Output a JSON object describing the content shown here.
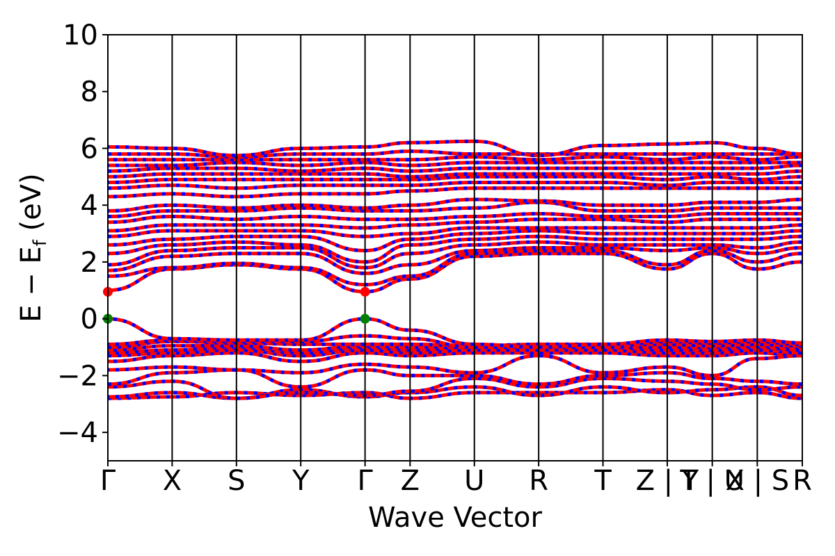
{
  "chart_data": {
    "type": "line",
    "title": "",
    "xlabel": "Wave Vector",
    "ylabel": "E − E",
    "ylabel_subscript": "f",
    "ylabel_unit": "(eV)",
    "ylim": [
      -5,
      10
    ],
    "yticks": [
      -4,
      -2,
      0,
      2,
      4,
      6,
      8,
      10
    ],
    "ytick_labels": [
      "−4",
      "−2",
      "0",
      "2",
      "4",
      "6",
      "8",
      "10"
    ],
    "kpath": [
      {
        "label": "Γ",
        "x": 0.0
      },
      {
        "label": "X",
        "x": 1.0
      },
      {
        "label": "S",
        "x": 2.0
      },
      {
        "label": "Y",
        "x": 3.0
      },
      {
        "label": "Γ",
        "x": 4.0
      },
      {
        "label": "Z",
        "x": 4.7
      },
      {
        "label": "U",
        "x": 5.7
      },
      {
        "label": "R",
        "x": 6.7
      },
      {
        "label": "T",
        "x": 7.7
      },
      {
        "label": "Z | Y",
        "x": 8.7
      },
      {
        "label": "T | U",
        "x": 9.4
      },
      {
        "label": "X | S",
        "x": 10.1
      },
      {
        "label": "R",
        "x": 10.8
      }
    ],
    "grid": false,
    "legend": "none",
    "colors": {
      "spin_up": "#ff0000",
      "spin_down": "#0000ff",
      "extrema": "#008000",
      "cbm": "#ff0000",
      "kpath_line": "#000000"
    },
    "band_edges": [
      {
        "name": "VBM",
        "k": [
          0.0,
          4.0
        ],
        "energy": 0.0,
        "color": "#008000"
      },
      {
        "name": "CBM",
        "k": [
          0.0,
          4.0
        ],
        "energy": 0.95,
        "color": "#ff0000"
      }
    ],
    "series": [
      {
        "values": [
          -2.8,
          -2.75,
          -2.6,
          -2.7,
          -2.6,
          -2.8,
          -2.6,
          -2.6,
          -2.6,
          -2.5,
          -2.7,
          -2.6,
          -2.8
        ]
      },
      {
        "values": [
          -2.75,
          -2.6,
          -2.8,
          -2.5,
          -2.75,
          -2.6,
          -2.4,
          -2.7,
          -2.4,
          -2.6,
          -2.5,
          -2.4,
          -2.7
        ]
      },
      {
        "values": [
          -2.4,
          -2.2,
          -2.8,
          -2.6,
          -2.7,
          -2.55,
          -2.1,
          -2.4,
          -2.1,
          -2.2,
          -2.3,
          -2.5,
          -2.4
        ]
      },
      {
        "values": [
          -2.3,
          -1.9,
          -1.8,
          -2.4,
          -1.8,
          -2.0,
          -2.0,
          -2.3,
          -2.0,
          -1.9,
          -2.1,
          -2.2,
          -2.3
        ]
      },
      {
        "values": [
          -1.8,
          -1.7,
          -1.8,
          -1.9,
          -1.6,
          -1.7,
          -1.9,
          -1.3,
          -1.9,
          -1.7,
          -2.0,
          -1.4,
          -1.3
        ]
      },
      {
        "values": [
          -1.5,
          -1.3,
          -1.2,
          -1.5,
          -1.2,
          -1.3,
          -1.2,
          -1.2,
          -1.2,
          -1.3,
          -1.3,
          -1.2,
          -1.3
        ]
      },
      {
        "values": [
          -1.3,
          -1.2,
          -1.1,
          -1.3,
          -1.1,
          -1.2,
          -1.1,
          -1.1,
          -1.1,
          -1.2,
          -1.2,
          -1.1,
          -1.2
        ]
      },
      {
        "values": [
          -1.2,
          -1.1,
          -1.0,
          -1.2,
          -1.0,
          -1.1,
          -1.0,
          -1.0,
          -1.0,
          -1.1,
          -1.1,
          -1.0,
          -1.1
        ]
      },
      {
        "values": [
          -1.1,
          -0.95,
          -0.95,
          -1.1,
          -0.95,
          -1.0,
          -1.0,
          -0.95,
          -1.0,
          -1.0,
          -1.0,
          -0.95,
          -1.0
        ]
      },
      {
        "values": [
          -1.0,
          -0.8,
          -0.85,
          -0.9,
          -0.9,
          -0.9,
          -0.95,
          -0.9,
          -0.9,
          -0.9,
          -0.95,
          -0.9,
          -0.95
        ]
      },
      {
        "values": [
          -0.9,
          -0.75,
          -0.8,
          -0.8,
          -0.6,
          -0.7,
          -1.0,
          -1.0,
          -1.0,
          -0.8,
          -0.85,
          -0.8,
          -0.9
        ]
      },
      {
        "values": [
          0.0,
          -0.7,
          -0.75,
          -0.75,
          0.0,
          -0.4,
          -0.9,
          -1.0,
          -0.9,
          -0.75,
          -0.8,
          -0.75,
          -0.85
        ]
      },
      {
        "values": [
          1.0,
          1.75,
          1.9,
          1.75,
          0.95,
          1.4,
          2.2,
          2.3,
          2.3,
          1.75,
          2.3,
          1.75,
          2.0
        ]
      },
      {
        "values": [
          1.5,
          1.8,
          1.95,
          1.8,
          1.2,
          1.5,
          2.3,
          2.4,
          2.4,
          1.9,
          2.4,
          2.0,
          2.3
        ]
      },
      {
        "values": [
          1.7,
          2.2,
          2.3,
          2.3,
          1.6,
          1.9,
          2.4,
          2.5,
          2.5,
          2.4,
          2.5,
          2.3,
          2.5
        ]
      },
      {
        "values": [
          1.9,
          2.4,
          2.5,
          2.5,
          1.8,
          2.3,
          2.6,
          2.7,
          2.6,
          2.6,
          2.6,
          2.5,
          2.7
        ]
      },
      {
        "values": [
          2.3,
          2.6,
          2.7,
          2.6,
          2.0,
          2.6,
          2.8,
          2.9,
          2.8,
          2.8,
          2.8,
          2.8,
          2.9
        ]
      },
      {
        "values": [
          2.6,
          2.8,
          2.9,
          2.9,
          2.4,
          2.8,
          3.0,
          3.1,
          3.0,
          3.0,
          3.0,
          3.0,
          3.1
        ]
      },
      {
        "values": [
          2.9,
          3.1,
          3.1,
          3.1,
          2.9,
          3.0,
          3.2,
          3.2,
          3.2,
          3.2,
          3.2,
          3.2,
          3.3
        ]
      },
      {
        "values": [
          3.1,
          3.3,
          3.3,
          3.3,
          3.2,
          3.3,
          3.4,
          3.5,
          3.5,
          3.4,
          3.5,
          3.5,
          3.5
        ]
      },
      {
        "values": [
          3.4,
          3.6,
          3.5,
          3.6,
          3.5,
          3.5,
          3.6,
          3.7,
          3.6,
          3.6,
          3.7,
          3.7,
          3.7
        ]
      },
      {
        "values": [
          3.6,
          3.8,
          3.8,
          3.9,
          3.8,
          3.8,
          3.9,
          4.1,
          3.8,
          3.8,
          3.9,
          3.9,
          3.9
        ]
      },
      {
        "values": [
          3.8,
          4.0,
          3.9,
          4.0,
          3.9,
          4.0,
          4.2,
          4.15,
          4.0,
          4.0,
          4.1,
          4.1,
          4.2
        ]
      },
      {
        "values": [
          4.3,
          4.4,
          4.3,
          4.4,
          4.4,
          4.5,
          4.6,
          4.6,
          4.6,
          4.6,
          4.6,
          4.6,
          4.6
        ]
      },
      {
        "values": [
          4.6,
          4.7,
          4.6,
          4.7,
          4.7,
          4.7,
          4.8,
          4.8,
          4.8,
          4.7,
          4.8,
          4.8,
          4.8
        ]
      },
      {
        "values": [
          4.8,
          4.9,
          4.9,
          4.9,
          4.9,
          4.9,
          5.0,
          5.0,
          5.0,
          4.9,
          5.0,
          4.9,
          5.0
        ]
      },
      {
        "values": [
          5.0,
          5.1,
          5.1,
          5.1,
          5.1,
          5.0,
          5.1,
          5.1,
          5.1,
          5.1,
          5.1,
          5.1,
          5.2
        ]
      },
      {
        "values": [
          5.2,
          5.3,
          5.3,
          5.2,
          5.3,
          5.2,
          5.3,
          5.3,
          5.3,
          5.3,
          5.3,
          5.3,
          5.4
        ]
      },
      {
        "values": [
          5.4,
          5.4,
          5.5,
          5.4,
          5.5,
          5.4,
          5.5,
          5.5,
          5.5,
          5.5,
          5.5,
          5.5,
          5.5
        ]
      },
      {
        "values": [
          5.6,
          5.6,
          5.6,
          5.6,
          5.6,
          5.6,
          5.7,
          5.6,
          5.7,
          5.6,
          5.7,
          5.6,
          5.7
        ]
      },
      {
        "values": [
          5.8,
          5.8,
          5.7,
          5.8,
          5.8,
          5.9,
          5.8,
          5.8,
          5.8,
          5.8,
          5.8,
          5.8,
          5.8
        ]
      },
      {
        "values": [
          6.05,
          6.0,
          5.75,
          6.0,
          6.05,
          6.2,
          6.25,
          5.75,
          6.1,
          6.15,
          6.2,
          6.0,
          5.8
        ]
      }
    ]
  }
}
